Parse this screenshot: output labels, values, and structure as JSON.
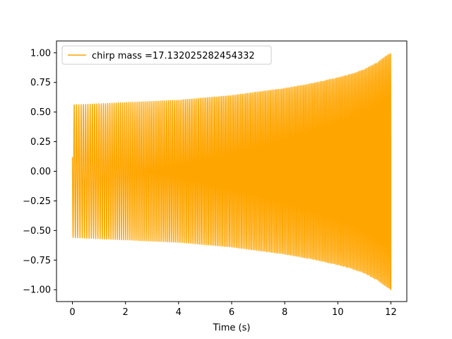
{
  "chart_data": {
    "type": "line",
    "title": "",
    "xlabel": "Time (s)",
    "ylabel": "",
    "xlim": [
      -0.6,
      12.6
    ],
    "ylim": [
      -1.1,
      1.1
    ],
    "xticks": [
      0,
      2,
      4,
      6,
      8,
      10,
      12
    ],
    "xtick_labels": [
      "0",
      "2",
      "4",
      "6",
      "8",
      "10",
      "12"
    ],
    "yticks": [
      -1.0,
      -0.75,
      -0.5,
      -0.25,
      0.0,
      0.25,
      0.5,
      0.75,
      1.0
    ],
    "ytick_labels": [
      "−1.00",
      "−0.75",
      "−0.50",
      "−0.25",
      "0.00",
      "0.25",
      "0.50",
      "0.75",
      "1.00"
    ],
    "grid": false,
    "legend_position": "top-left",
    "series": [
      {
        "name": "chirp mass =17.132025282454332",
        "color": "#ffa500",
        "signal": "chirp",
        "t_start": 0,
        "t_end": 12,
        "initial_value": 0.12,
        "envelope": [
          [
            0,
            0.56
          ],
          [
            1,
            0.57
          ],
          [
            2,
            0.58
          ],
          [
            3,
            0.59
          ],
          [
            4,
            0.6
          ],
          [
            5,
            0.62
          ],
          [
            6,
            0.64
          ],
          [
            7,
            0.67
          ],
          [
            8,
            0.7
          ],
          [
            9,
            0.74
          ],
          [
            10,
            0.79
          ],
          [
            10.5,
            0.82
          ],
          [
            11,
            0.86
          ],
          [
            11.5,
            0.92
          ],
          [
            12,
            1.0
          ]
        ],
        "approx_cycles": 185
      }
    ]
  }
}
